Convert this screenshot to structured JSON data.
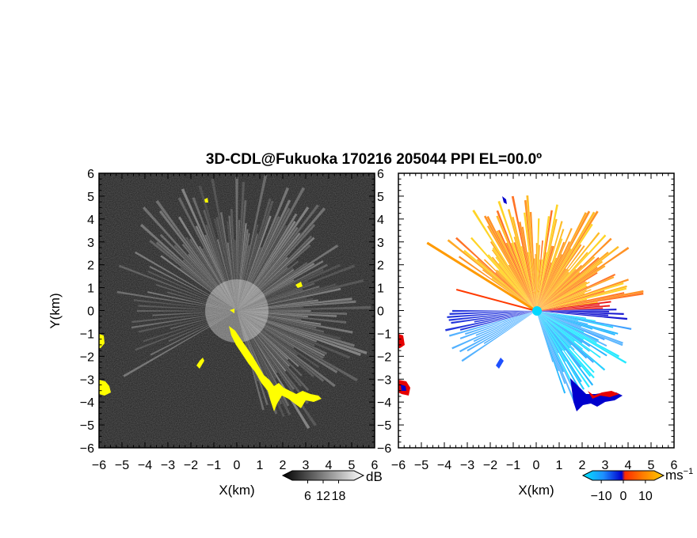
{
  "chart_data": [
    {
      "type": "heatmap",
      "title": "3D-CDL@Fukuoka 170216 205044 PPI EL=00.0º",
      "quantity": "reflectivity",
      "xlabel": "X(km)",
      "ylabel": "Y(km)",
      "xlim": [
        -6,
        6
      ],
      "ylim": [
        -6,
        6
      ],
      "x_ticks": [
        "−6",
        "−5",
        "−4",
        "−3",
        "−2",
        "−1",
        "0",
        "1",
        "2",
        "3",
        "4",
        "5",
        "6"
      ],
      "y_ticks": [
        "6",
        "5",
        "4",
        "3",
        "2",
        "1",
        "0",
        "−1",
        "−2",
        "−3",
        "−4",
        "−5",
        "−6"
      ],
      "colorbar": {
        "unit": "dB",
        "ticks": [
          "6",
          "12",
          "18"
        ],
        "range": [
          0,
          24
        ],
        "colormap": "grayscale"
      },
      "highlight_color": "#ffff00",
      "background_color": "#1c1c1c"
    },
    {
      "type": "heatmap",
      "quantity": "radial velocity",
      "xlabel": "X(km)",
      "ylabel": "",
      "xlim": [
        -6,
        6
      ],
      "ylim": [
        -6,
        6
      ],
      "x_ticks": [
        "−6",
        "−5",
        "−4",
        "−3",
        "−2",
        "−1",
        "0",
        "1",
        "2",
        "3",
        "4",
        "5",
        "6"
      ],
      "y_ticks": [
        "6",
        "5",
        "4",
        "3",
        "2",
        "1",
        "0",
        "−1",
        "−2",
        "−3",
        "−4",
        "−5",
        "−6"
      ],
      "colorbar": {
        "unit": "ms",
        "unit_exponent": "−1",
        "ticks": [
          "−10",
          "0",
          "10"
        ],
        "range": [
          -14,
          14
        ],
        "colors": [
          "#00e5ff",
          "#1e90ff",
          "#0000cd",
          "#ff2a00",
          "#ff7f00",
          "#ffcc00"
        ]
      },
      "background_color": "#ffffff"
    }
  ]
}
